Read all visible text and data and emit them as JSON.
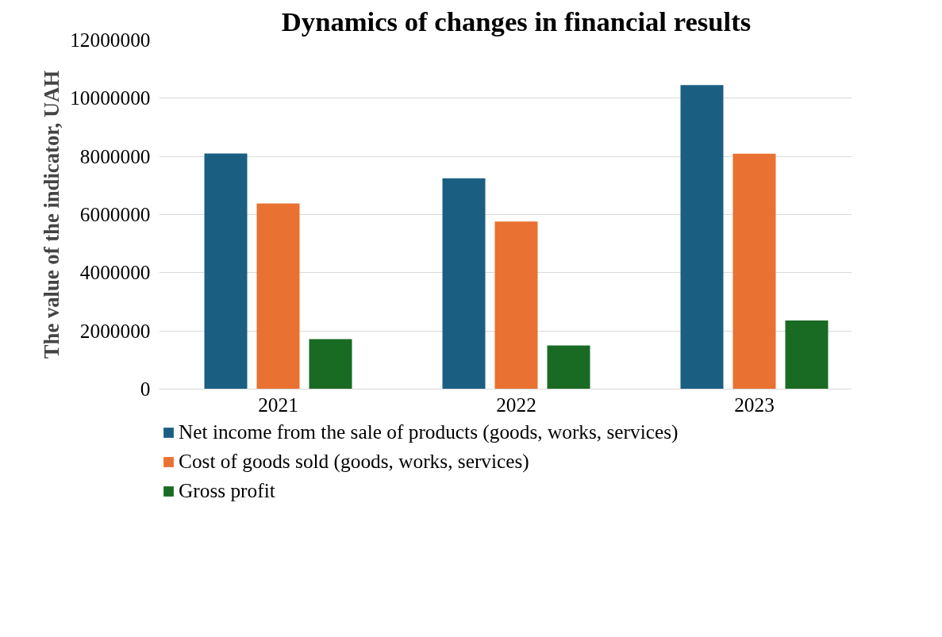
{
  "chart_data": {
    "type": "bar",
    "title": "Dynamics of changes in financial results",
    "ylabel": "The value of the indicator, UAH",
    "categories": [
      "2021",
      "2022",
      "2023"
    ],
    "series": [
      {
        "name": "Net income from the sale of products (goods, works, services)",
        "color": "#1a5f82",
        "values": [
          8100000,
          7250000,
          10450000
        ]
      },
      {
        "name": "Cost of goods sold (goods, works, services)",
        "color": "#e97132",
        "values": [
          6380000,
          5760000,
          8090000
        ]
      },
      {
        "name": "Gross profit",
        "color": "#196b24",
        "values": [
          1720000,
          1500000,
          2360000
        ]
      }
    ],
    "ylim": [
      0,
      12000000
    ],
    "yticks": [
      0,
      2000000,
      4000000,
      6000000,
      8000000,
      10000000,
      12000000
    ],
    "grid": "y",
    "legend": "bottom"
  }
}
